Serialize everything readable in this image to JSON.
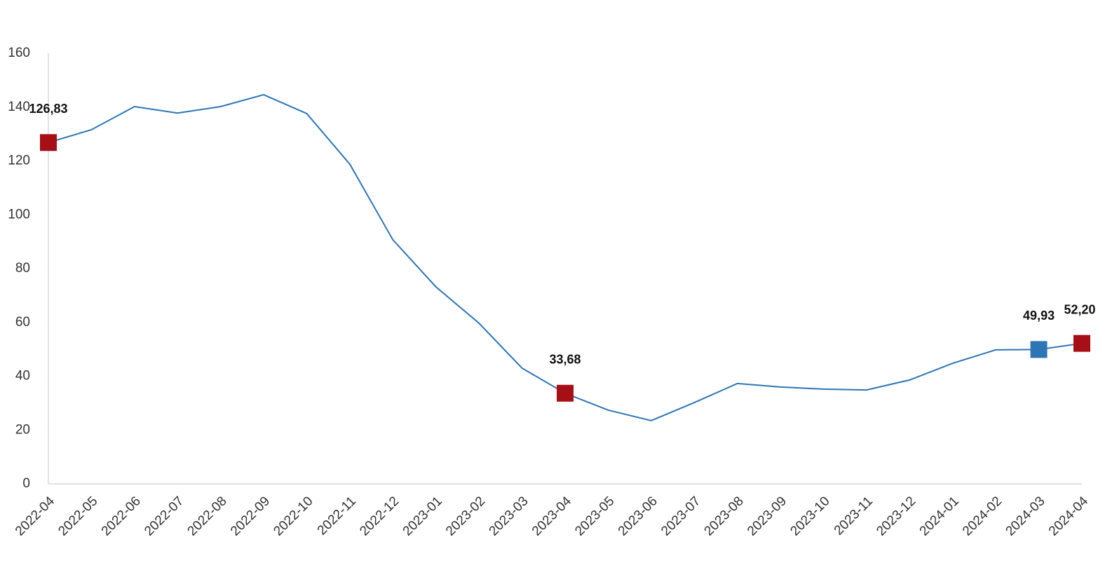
{
  "chart_data": {
    "type": "line",
    "categories": [
      "2022-04",
      "2022-05",
      "2022-06",
      "2022-07",
      "2022-08",
      "2022-09",
      "2022-10",
      "2022-11",
      "2022-12",
      "2023-01",
      "2023-02",
      "2023-03",
      "2023-04",
      "2023-05",
      "2023-06",
      "2023-07",
      "2023-08",
      "2023-09",
      "2023-10",
      "2023-11",
      "2023-12",
      "2024-01",
      "2024-02",
      "2024-03",
      "2024-04"
    ],
    "series": [
      {
        "color": "#2e75b6",
        "values": [
          126.83,
          131.6,
          140.2,
          137.8,
          140.2,
          144.6,
          137.6,
          118.8,
          90.7,
          73.2,
          59.7,
          43.0,
          33.68,
          27.4,
          23.5,
          30.2,
          37.3,
          36.0,
          35.2,
          34.9,
          38.6,
          44.8,
          49.8,
          49.93,
          52.2
        ],
        "value_labels": [
          "126,83",
          null,
          null,
          null,
          null,
          null,
          null,
          null,
          null,
          null,
          null,
          null,
          "33,68",
          null,
          null,
          null,
          null,
          null,
          null,
          null,
          null,
          null,
          null,
          "49,93",
          "52,20"
        ],
        "marker_colors": [
          "#a50f15",
          null,
          null,
          null,
          null,
          null,
          null,
          null,
          null,
          null,
          null,
          null,
          "#a50f15",
          null,
          null,
          null,
          null,
          null,
          null,
          null,
          null,
          null,
          null,
          "#2e75b6",
          "#a50f15"
        ]
      }
    ],
    "ylim": [
      0,
      160
    ],
    "yticks": [
      0,
      20,
      40,
      60,
      80,
      100,
      120,
      140,
      160
    ],
    "grid": false
  }
}
